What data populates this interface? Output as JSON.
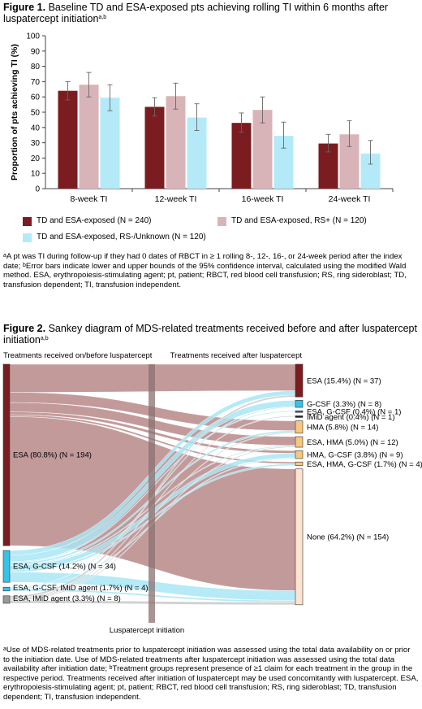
{
  "figure1": {
    "label": "Figure 1.",
    "title": " Baseline TD and ESA-exposed pts achieving rolling TI within 6 months after luspatercept initiation",
    "title_sup": "a,b",
    "footnote": [
      {
        "sup": "a",
        "text": "A pt was TI during follow-up if they had 0 dates of RBCT in ≥ 1 rolling 8-, 12-, 16-, or 24-week period after the index date; "
      },
      {
        "sup": "b",
        "text": "Error bars indicate lower and upper bounds of the 95% confidence interval, calculated using the modified Wald method. ESA, erythropoiesis-stimulating agent; pt, patient; RBCT, red blood cell transfusion; RS, ring sideroblast; TD, transfusion dependent; TI, transfusion independent."
      }
    ]
  },
  "chart_data": {
    "type": "bar",
    "ylabel": "Proportion of pts achieving TI (%)",
    "xlabel": "",
    "ylim": [
      0,
      100
    ],
    "yticks": [
      0,
      10,
      20,
      30,
      40,
      50,
      60,
      70,
      80,
      90,
      100
    ],
    "categories": [
      "8-week TI",
      "12-week TI",
      "16-week TI",
      "24-week TI"
    ],
    "series": [
      {
        "name": "TD and ESA-exposed (N = 240)",
        "color": "#7b1c20",
        "values": [
          64,
          53.5,
          43,
          29.5
        ],
        "err_low": [
          58,
          47.5,
          37,
          24
        ],
        "err_high": [
          70,
          59.5,
          49.5,
          35.5
        ]
      },
      {
        "name": "TD and ESA-exposed, RS+ (N = 120)",
        "color": "#d8b4b8",
        "values": [
          68,
          60.5,
          51.5,
          35.5
        ],
        "err_low": [
          60,
          52,
          43,
          27.5
        ],
        "err_high": [
          76,
          69,
          60,
          44.5
        ]
      },
      {
        "name": "TD and ESA-exposed, RS-/Unknown (N = 120)",
        "color": "#b4eaf8",
        "values": [
          59.5,
          46.5,
          34.5,
          23
        ],
        "err_low": [
          51,
          38,
          26.5,
          16
        ],
        "err_high": [
          68,
          55.5,
          43.5,
          31.5
        ]
      }
    ],
    "grid": false,
    "legend_position": "bottom"
  },
  "figure2": {
    "label": "Figure 2.",
    "title": " Sankey diagram of MDS-related treatments received before and after luspatercept initiation",
    "title_sup": "a,b",
    "left_header": "Treatments received on/before luspatercept",
    "right_header": "Treatments received after luspatercept",
    "center_label": "Luspatercept initiation",
    "left_nodes": [
      {
        "label": "ESA (80.8%) (N = 194)",
        "n": 194,
        "color": "#7b1c20"
      },
      {
        "label": "ESA, G-CSF (14.2%) (N = 34)",
        "n": 34,
        "color": "#33c4e8"
      },
      {
        "label": "ESA, G-CSF, IMiD agent (1.7%) (N = 4)",
        "n": 4,
        "color": "#33c4e8"
      },
      {
        "label": "ESA, IMiD agent (3.3%) (N = 8)",
        "n": 8,
        "color": "#999999"
      }
    ],
    "right_nodes": [
      {
        "label": "ESA (15.4%) (N = 37)",
        "n": 37,
        "color": "#7b1c20"
      },
      {
        "label": "G-CSF (3.3%) (N = 8)",
        "n": 8,
        "color": "#33c4e8"
      },
      {
        "label": "ESA, G-CSF (0.4%) (N = 1)",
        "n": 1,
        "color": "#2a6f8a"
      },
      {
        "label": "IMiD agent (0.4%) (N = 1)",
        "n": 1,
        "color": "#222222"
      },
      {
        "label": "HMA (5.8%) (N = 14)",
        "n": 14,
        "color": "#f7c77c"
      },
      {
        "label": "ESA, HMA (5.0%) (N = 12)",
        "n": 12,
        "color": "#f7c77c"
      },
      {
        "label": "HMA, G-CSF (3.8%) (N = 9)",
        "n": 9,
        "color": "#f7c77c"
      },
      {
        "label": "ESA, HMA, G-CSF (1.7%) (N = 4)",
        "n": 4,
        "color": "#f7c77c"
      },
      {
        "label": "None (64.2%) (N = 154)",
        "n": 154,
        "color": "#fde4d0"
      }
    ],
    "footnote": [
      {
        "sup": "a",
        "text": "Use of MDS-related treatments prior to luspatercept initiation was assessed using the total data availability on or prior to the initiation date. Use of MDS-related treatments after luspatercept initiation was assessed using the total data availability after initiation date; "
      },
      {
        "sup": "b",
        "text": "Treatment groups represent presence of ≥1 claim for each treatment in the group in the respective period. Treatments received after initiation of luspatercept may be used concomitantly with luspatercept. ESA, erythropoiesis-stimulating agent; pt, patient; RBCT, red blood cell transfusion; RS, ring sideroblast; TD, transfusion dependent; TI, transfusion independent."
      }
    ]
  }
}
